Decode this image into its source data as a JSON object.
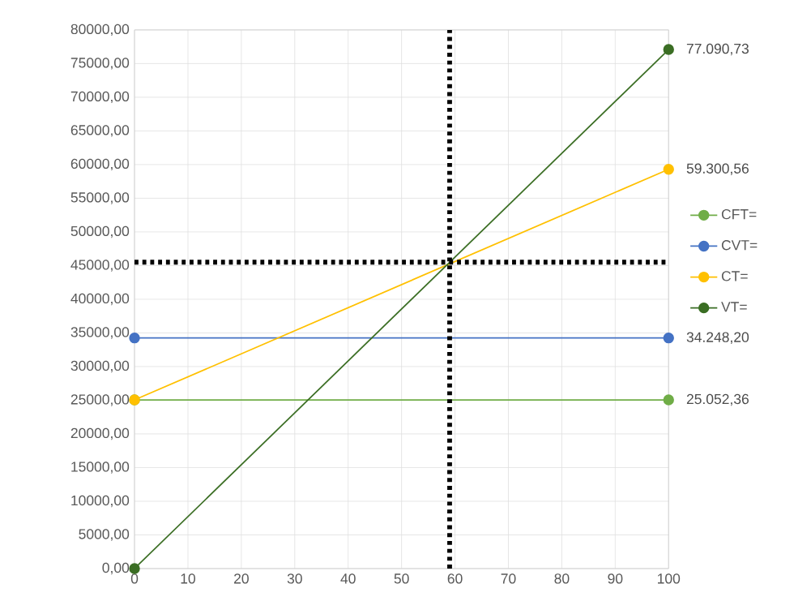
{
  "chart_data": {
    "type": "line",
    "x": [
      0,
      100
    ],
    "series": [
      {
        "name": "CFT=",
        "color": "#70ad47",
        "values": [
          25052.36,
          25052.36
        ],
        "value_labels": [
          null,
          "25.052,36"
        ]
      },
      {
        "name": "CVT=",
        "color": "#4472c4",
        "values": [
          34248.2,
          34248.2
        ],
        "value_labels": [
          null,
          "34.248,20"
        ]
      },
      {
        "name": "CT=",
        "color": "#ffc000",
        "values": [
          25052.36,
          59300.56
        ],
        "value_labels": [
          null,
          "59.300,56"
        ]
      },
      {
        "name": "VT=",
        "color": "#3b6e24",
        "values": [
          0,
          77090.73
        ],
        "value_labels": [
          null,
          "77.090,73"
        ]
      }
    ],
    "xlim": [
      0,
      100
    ],
    "xticks": [
      0,
      10,
      20,
      30,
      40,
      50,
      60,
      70,
      80,
      90,
      100
    ],
    "ylim": [
      0,
      80000
    ],
    "yticks": [
      {
        "value": 0,
        "label": "0,00"
      },
      {
        "value": 5000,
        "label": "5000,00"
      },
      {
        "value": 10000,
        "label": "10000,00"
      },
      {
        "value": 15000,
        "label": "15000,00"
      },
      {
        "value": 20000,
        "label": "20000,00"
      },
      {
        "value": 25000,
        "label": "25000,00"
      },
      {
        "value": 30000,
        "label": "30000,00"
      },
      {
        "value": 35000,
        "label": "35000,00"
      },
      {
        "value": 40000,
        "label": "40000,00"
      },
      {
        "value": 45000,
        "label": "45000,00"
      },
      {
        "value": 50000,
        "label": "50000,00"
      },
      {
        "value": 55000,
        "label": "55000,00"
      },
      {
        "value": 60000,
        "label": "60000,00"
      },
      {
        "value": 65000,
        "label": "65000,00"
      },
      {
        "value": 70000,
        "label": "70000,00"
      },
      {
        "value": 75000,
        "label": "75000,00"
      },
      {
        "value": 80000,
        "label": "80000,00"
      }
    ],
    "ref_lines": [
      {
        "axis": "x",
        "value": 59,
        "color": "#000000",
        "line_style": "dotted"
      },
      {
        "axis": "y",
        "value": 45500,
        "color": "#000000",
        "line_style": "dotted"
      }
    ],
    "grid": true,
    "legend": "right",
    "marker": "circle",
    "line_style": "solid"
  }
}
